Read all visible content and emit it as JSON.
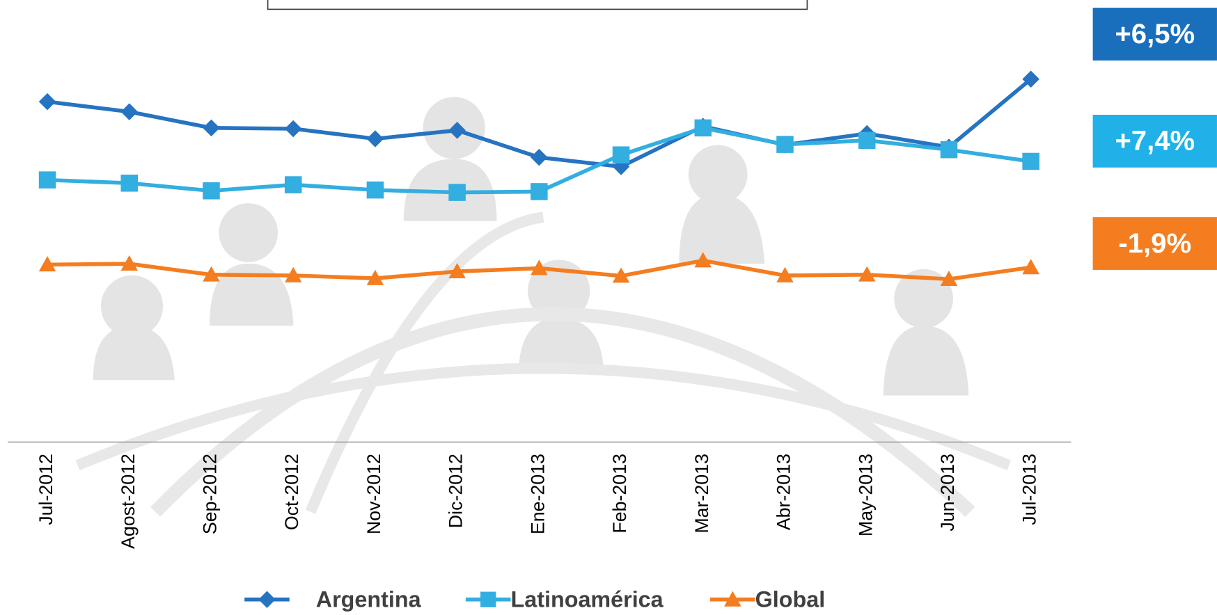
{
  "chart_data": {
    "type": "line",
    "categories": [
      "Jul-2012",
      "Agost-2012",
      "Sep-2012",
      "Oct-2012",
      "Nov-2012",
      "Dic-2012",
      "Ene-2013",
      "Feb-2013",
      "Mar-2013",
      "Abr-2013",
      "May-2013",
      "Jun-2013",
      "Jul-2013"
    ],
    "series": [
      {
        "name": "Argentina",
        "color": "#2673c2",
        "marker": "diamond",
        "values": [
          84.4,
          81.9,
          77.9,
          77.7,
          75.2,
          77.3,
          70.6,
          68.3,
          78.3,
          73.7,
          76.5,
          73.1,
          90.0
        ]
      },
      {
        "name": "Latinoamérica",
        "color": "#33aee0",
        "marker": "square",
        "values": [
          65.0,
          64.2,
          62.3,
          63.8,
          62.5,
          61.9,
          62.1,
          71.2,
          77.9,
          73.8,
          74.8,
          72.5,
          69.6
        ]
      },
      {
        "name": "Global",
        "color": "#f47d20",
        "marker": "triangle",
        "values": [
          44.0,
          44.2,
          41.5,
          41.3,
          40.6,
          42.3,
          43.1,
          41.2,
          45.0,
          41.3,
          41.5,
          40.4,
          43.3
        ]
      }
    ],
    "ylim": [
      0,
      100
    ],
    "annotations": [
      {
        "text": "+6,5%",
        "color": "#1a6fbd"
      },
      {
        "text": "+7,4%",
        "color": "#1fb1e8"
      },
      {
        "text": "-1,9%",
        "color": "#f47d20"
      }
    ]
  }
}
